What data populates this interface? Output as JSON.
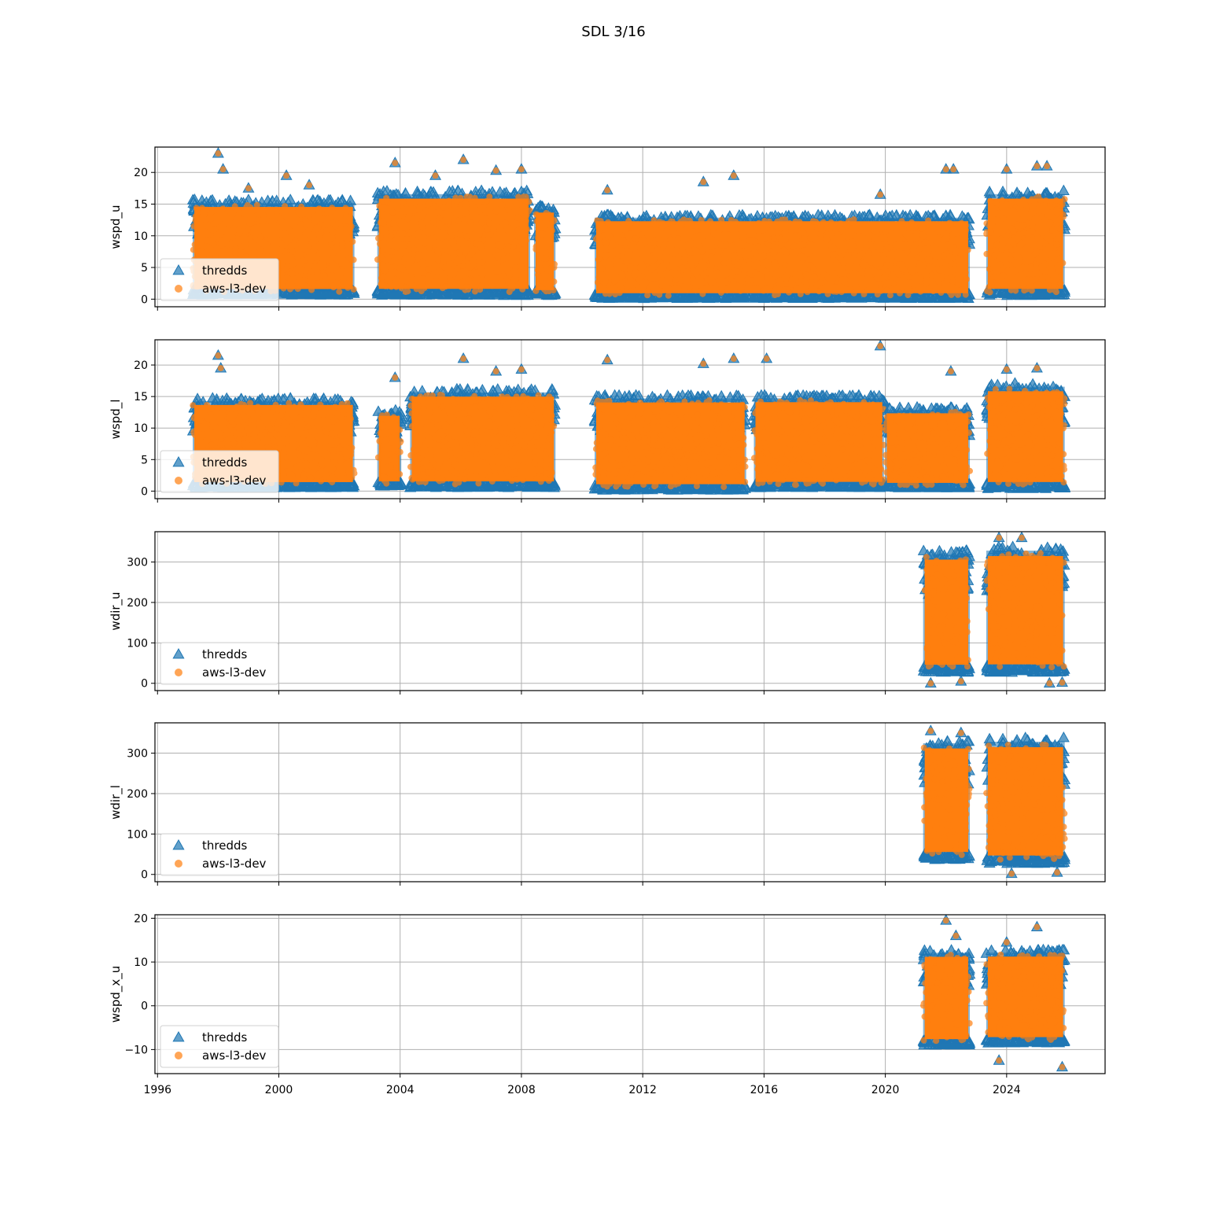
{
  "figure": {
    "title": "SDL 3/16"
  },
  "legend": {
    "entries": [
      {
        "label": "thredds",
        "marker": "triangle",
        "color": "#1f77b4"
      },
      {
        "label": "aws-l3-dev",
        "marker": "circle",
        "color": "#ff7f0e"
      }
    ],
    "placement": "lower-left"
  },
  "colors": {
    "thredds": "#1f77b4",
    "aws_l3_dev": "#ff7f0e",
    "grid": "#b0b0b0"
  },
  "x_axis": {
    "type": "date",
    "range": [
      "1995-12-01",
      "2027-04-01"
    ],
    "ticks": [
      "1996",
      "2000",
      "2004",
      "2008",
      "2012",
      "2016",
      "2020",
      "2024"
    ],
    "tick_years": [
      1996,
      2000,
      2004,
      2008,
      2012,
      2016,
      2020,
      2024
    ]
  },
  "chart_data": [
    {
      "type": "scatter",
      "ylabel": "wspd_u",
      "ylim": [
        -1.2,
        24
      ],
      "yticks": [
        0,
        5,
        10,
        15,
        20
      ],
      "grid": true,
      "series": [
        {
          "name": "thredds"
        },
        {
          "name": "aws-l3-dev"
        }
      ],
      "segments": [
        {
          "start": "1997-03-01",
          "end": "2002-06-30",
          "ymin": 0.3,
          "ymax": 16.5
        },
        {
          "start": "2003-04-01",
          "end": "2008-04-15",
          "ymin": 0.2,
          "ymax": 18
        },
        {
          "start": "2008-06-01",
          "end": "2009-02-15",
          "ymin": 0.2,
          "ymax": 15.5
        },
        {
          "start": "2010-06-01",
          "end": "2022-10-15",
          "ymin": -0.2,
          "ymax": 14
        },
        {
          "start": "2023-05-01",
          "end": "2025-12-01",
          "ymin": 0.2,
          "ymax": 18
        }
      ],
      "peaks": [
        [
          "1998-01-01",
          23
        ],
        [
          "1998-03-01",
          20.5
        ],
        [
          "1999-01-01",
          17.5
        ],
        [
          "2000-04-01",
          19.5
        ],
        [
          "2001-01-01",
          18
        ],
        [
          "2003-11-01",
          21.5
        ],
        [
          "2005-03-01",
          19.5
        ],
        [
          "2006-02-01",
          22
        ],
        [
          "2007-03-01",
          20.3
        ],
        [
          "2008-01-01",
          20.5
        ],
        [
          "2010-11-01",
          17.2
        ],
        [
          "2014-01-01",
          18.5
        ],
        [
          "2015-01-01",
          19.5
        ],
        [
          "2019-11-01",
          16.5
        ],
        [
          "2022-01-01",
          20.5
        ],
        [
          "2022-04-01",
          20.5
        ],
        [
          "2024-01-01",
          20.5
        ],
        [
          "2025-01-01",
          21
        ],
        [
          "2025-05-01",
          21
        ]
      ]
    },
    {
      "type": "scatter",
      "ylabel": "wspd_l",
      "ylim": [
        -1.2,
        24
      ],
      "yticks": [
        0,
        5,
        10,
        15,
        20
      ],
      "grid": true,
      "series": [
        {
          "name": "thredds"
        },
        {
          "name": "aws-l3-dev"
        }
      ],
      "segments": [
        {
          "start": "1997-03-01",
          "end": "2002-06-30",
          "ymin": 0.2,
          "ymax": 15.5
        },
        {
          "start": "2003-04-01",
          "end": "2004-01-15",
          "ymin": 0.5,
          "ymax": 13.5
        },
        {
          "start": "2004-05-01",
          "end": "2009-02-15",
          "ymin": 0.2,
          "ymax": 17
        },
        {
          "start": "2010-06-01",
          "end": "2015-05-31",
          "ymin": -0.2,
          "ymax": 16
        },
        {
          "start": "2015-09-01",
          "end": "2019-12-15",
          "ymin": 0.2,
          "ymax": 16
        },
        {
          "start": "2020-01-01",
          "end": "2022-10-15",
          "ymin": 0.2,
          "ymax": 14
        },
        {
          "start": "2023-05-01",
          "end": "2025-12-01",
          "ymin": 0,
          "ymax": 18
        }
      ],
      "peaks": [
        [
          "1998-01-01",
          21.5
        ],
        [
          "1998-02-01",
          19.5
        ],
        [
          "2003-11-01",
          18
        ],
        [
          "2006-02-01",
          21
        ],
        [
          "2007-03-01",
          19
        ],
        [
          "2008-01-01",
          19.3
        ],
        [
          "2010-11-01",
          20.8
        ],
        [
          "2014-01-01",
          20.2
        ],
        [
          "2015-01-01",
          21
        ],
        [
          "2016-02-01",
          21
        ],
        [
          "2019-11-01",
          23
        ],
        [
          "2022-03-01",
          19
        ],
        [
          "2024-01-01",
          19.3
        ],
        [
          "2025-01-01",
          19.5
        ]
      ]
    },
    {
      "type": "scatter",
      "ylabel": "wdir_u",
      "ylim": [
        -18,
        375
      ],
      "yticks": [
        0,
        100,
        200,
        300
      ],
      "grid": true,
      "series": [
        {
          "name": "thredds"
        },
        {
          "name": "aws-l3-dev"
        }
      ],
      "segments": [
        {
          "start": "2021-04-01",
          "end": "2022-10-15",
          "ymin": 20,
          "ymax": 345
        },
        {
          "start": "2023-05-01",
          "end": "2025-12-01",
          "ymin": 20,
          "ymax": 355
        }
      ],
      "peaks": [
        [
          "2021-07-01",
          0
        ],
        [
          "2022-07-01",
          5
        ],
        [
          "2023-10-01",
          360
        ],
        [
          "2024-07-01",
          360
        ],
        [
          "2025-06-01",
          0
        ],
        [
          "2025-11-01",
          2
        ]
      ]
    },
    {
      "type": "scatter",
      "ylabel": "wdir_l",
      "ylim": [
        -18,
        375
      ],
      "yticks": [
        0,
        100,
        200,
        300
      ],
      "grid": true,
      "series": [
        {
          "name": "thredds"
        },
        {
          "name": "aws-l3-dev"
        }
      ],
      "segments": [
        {
          "start": "2021-04-01",
          "end": "2022-10-15",
          "ymin": 30,
          "ymax": 350
        },
        {
          "start": "2023-05-01",
          "end": "2025-12-01",
          "ymin": 20,
          "ymax": 355
        }
      ],
      "peaks": [
        [
          "2021-07-01",
          355
        ],
        [
          "2022-07-01",
          350
        ],
        [
          "2024-03-01",
          2
        ],
        [
          "2025-09-01",
          5
        ]
      ]
    },
    {
      "type": "scatter",
      "ylabel": "wspd_x_u",
      "ylim": [
        -15.5,
        20.8
      ],
      "yticks": [
        -10,
        0,
        10,
        20
      ],
      "grid": true,
      "series": [
        {
          "name": "thredds"
        },
        {
          "name": "aws-l3-dev"
        }
      ],
      "segments": [
        {
          "start": "2021-04-01",
          "end": "2022-10-15",
          "ymin": -9.5,
          "ymax": 14
        },
        {
          "start": "2023-05-01",
          "end": "2025-12-01",
          "ymin": -9,
          "ymax": 14
        }
      ],
      "peaks": [
        [
          "2022-01-01",
          19.5
        ],
        [
          "2022-05-01",
          16
        ],
        [
          "2024-01-01",
          14.5
        ],
        [
          "2025-01-01",
          18
        ],
        [
          "2023-10-01",
          -12.5
        ],
        [
          "2025-11-01",
          -14
        ]
      ]
    }
  ]
}
